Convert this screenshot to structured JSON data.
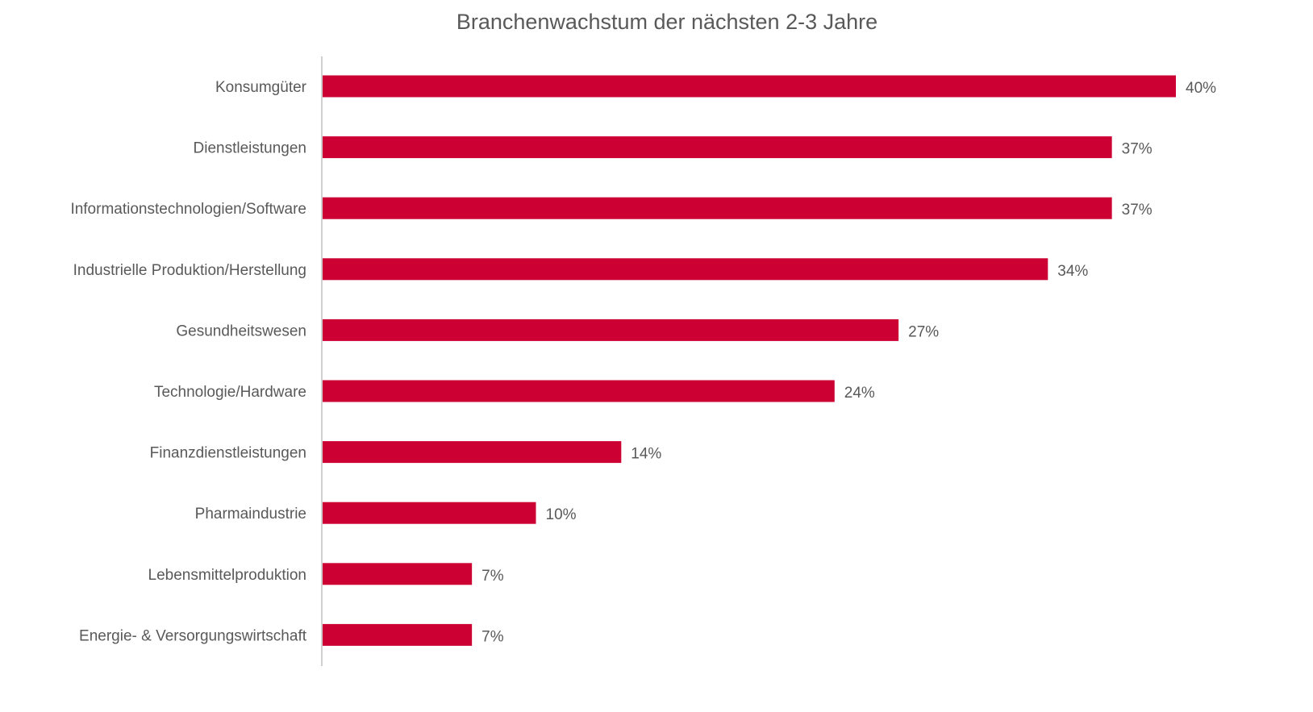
{
  "chart_data": {
    "type": "bar",
    "orientation": "horizontal",
    "title": "Branchenwachstum der nächsten 2-3 Jahre",
    "xlabel": "",
    "ylabel": "",
    "xlim": [
      0,
      40
    ],
    "grid": false,
    "bar_color": "#CC0033",
    "categories": [
      "Konsumgüter",
      "Dienstleistungen",
      "Informationstechnologien/Software",
      "Industrielle Produktion/Herstellung",
      "Gesundheitswesen",
      "Technologie/Hardware",
      "Finanzdienstleistungen",
      "Pharmaindustrie",
      "Lebensmittelproduktion",
      "Energie- & Versorgungswirtschaft"
    ],
    "values": [
      40,
      37,
      37,
      34,
      27,
      24,
      14,
      10,
      7,
      7
    ],
    "value_labels": [
      "40%",
      "37%",
      "37%",
      "34%",
      "27%",
      "24%",
      "14%",
      "10%",
      "7%",
      "7%"
    ]
  }
}
